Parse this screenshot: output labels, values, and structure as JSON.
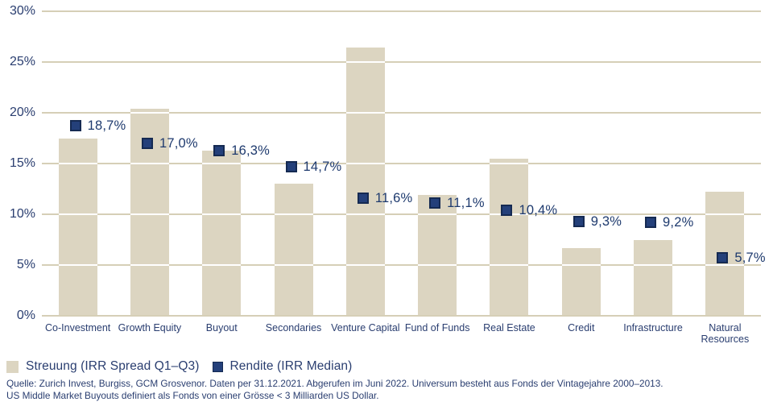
{
  "chart_data": {
    "type": "bar",
    "title": "",
    "categories": [
      "Co-Investment",
      "Growth Equity",
      "Buyout",
      "Secondaries",
      "Venture Capital",
      "Fund of Funds",
      "Real Estate",
      "Credit",
      "Infrastructure",
      "Natural\nResources"
    ],
    "series": [
      {
        "name": "Streuung (IRR Spread Q1–Q3)",
        "type": "bar",
        "color": "#dcd5c1",
        "values": [
          17.5,
          20.4,
          16.3,
          13.0,
          26.4,
          11.9,
          15.5,
          6.7,
          7.5,
          12.2
        ]
      },
      {
        "name": "Rendite (IRR Median)",
        "type": "scatter",
        "marker": "square",
        "color": "#24407a",
        "values": [
          18.7,
          17.0,
          16.3,
          14.7,
          11.6,
          11.1,
          10.4,
          9.3,
          9.2,
          5.7
        ],
        "labels": [
          "18,7%",
          "17,0%",
          "16,3%",
          "14,7%",
          "11,6%",
          "11,1%",
          "10,4%",
          "9,3%",
          "9,2%",
          "5,7%"
        ]
      }
    ],
    "xlabel": "",
    "ylabel": "",
    "ylim": [
      0,
      30
    ],
    "ytick_step": 5,
    "ytick_labels": [
      "0%",
      "5%",
      "10%",
      "15%",
      "20%",
      "25%",
      "30%"
    ],
    "grid": true,
    "legend_position": "bottom-left"
  },
  "legend": {
    "items": [
      {
        "label": "Streuung (IRR Spread Q1–Q3)",
        "swatch_color": "#dcd5c1"
      },
      {
        "label": "Rendite (IRR Median)",
        "swatch_color": "#24407a"
      }
    ]
  },
  "footnote": {
    "line1": "Quelle: Zurich Invest, Burgiss, GCM Grosvenor. Daten per 31.12.2021. Abgerufen im Juni 2022. Universum besteht aus Fonds der Vintagejahre 2000–2013.",
    "line2": "US Middle Market Buyouts definiert als Fonds von einer Grösse < 3 Milliarden US Dollar."
  },
  "colors": {
    "background": "#ffffff",
    "bar": "#dcd5c1",
    "gridline": "#d6cfb7",
    "marker": "#24407a",
    "marker_border": "#152a52",
    "axis_text": "#2a3e70",
    "value_label_text": "#1e3a6e"
  }
}
